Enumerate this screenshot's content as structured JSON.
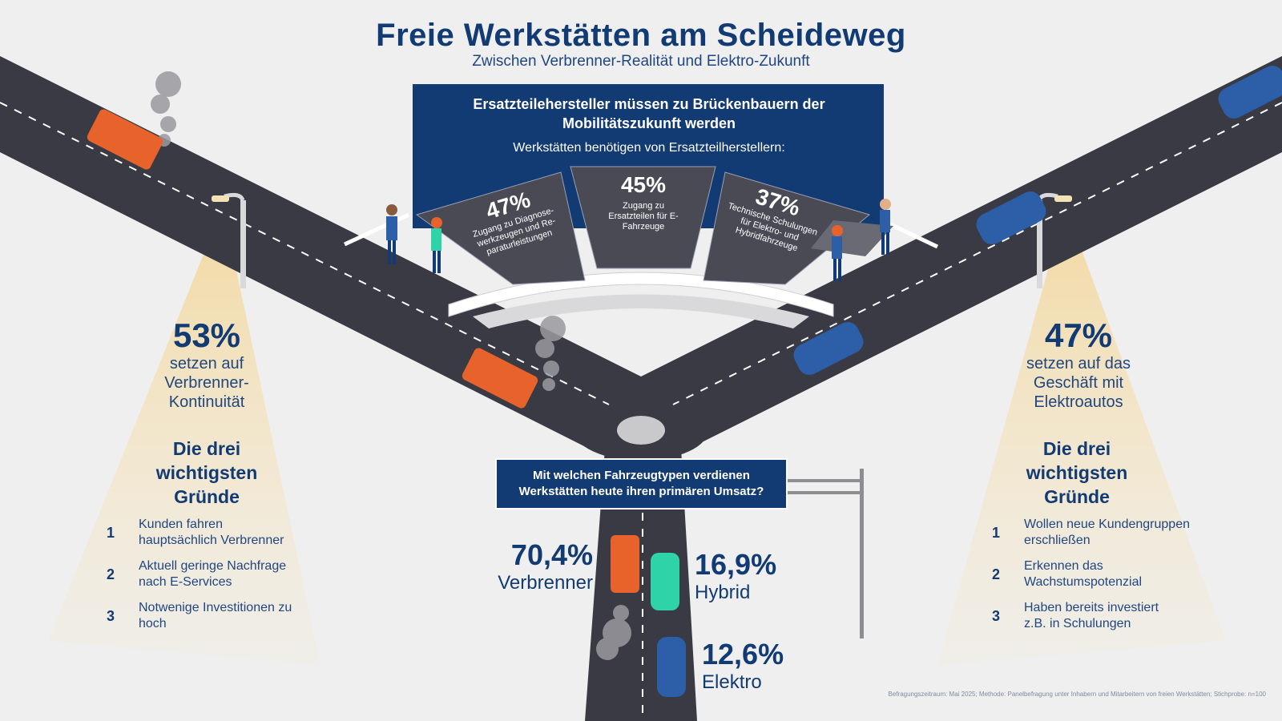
{
  "header": {
    "title": "Freie Werkstätten am Scheideweg",
    "subtitle": "Zwischen Verbrenner-Realität und Elektro-Zukunft"
  },
  "banner": {
    "headline": "Ersatzteilehersteller müssen zu Brückenbauern der Mobilitätszukunft werden",
    "subheadline": "Werkstätten benötigen von Ersatzteilherstellern:",
    "panels": [
      {
        "value": "47%",
        "text": "Zugang zu Diagnose-werkzeugen und Re-paraturleistungen"
      },
      {
        "value": "45%",
        "text": "Zugang zu Ersatzteilen für E-Fahrzeuge"
      },
      {
        "value": "37%",
        "text": "Technische Schulungen für Elektro- und Hybridfahrzeuge"
      }
    ]
  },
  "left": {
    "value": "53%",
    "label": "setzen auf Verbrenner-Kontinuität",
    "heading": "Die drei wichtigsten Gründe",
    "reasons": [
      {
        "num": "1",
        "text": "Kunden fahren hauptsächlich Verbrenner"
      },
      {
        "num": "2",
        "text": "Aktuell geringe Nachfrage nach E-Services"
      },
      {
        "num": "3",
        "text": "Notwenige Investitionen zu hoch"
      }
    ]
  },
  "right": {
    "value": "47%",
    "label": "setzen auf das Geschäft mit Elektroautos",
    "heading": "Die drei wichtigsten Gründe",
    "reasons": [
      {
        "num": "1",
        "text": "Wollen neue Kundengruppen erschließen"
      },
      {
        "num": "2",
        "text": "Erkennen das Wachstumspotenzial"
      },
      {
        "num": "3",
        "text": "Haben bereits investiert z.B. in Schulungen"
      }
    ]
  },
  "sign": {
    "question": "Mit welchen Fahrzeugtypen verdienen Werkstätten heute ihren primären Umsatz?"
  },
  "revenue_shares": [
    {
      "value": "70,4%",
      "label": "Verbrenner",
      "share": 70.4,
      "color": "#e8632b"
    },
    {
      "value": "16,9%",
      "label": "Hybrid",
      "share": 16.9,
      "color": "#2fd3a8"
    },
    {
      "value": "12,6%",
      "label": "Elektro",
      "share": 12.6,
      "color": "#2d5ea8"
    }
  ],
  "footnote": "Befragungszeitraum: Mai 2025; Methode: Panelbefragung unter Inhabern und Mitarbeitern von freien Werkstätten; Stichprobe: n=100",
  "colors": {
    "navy": "#123a73",
    "road": "#3a3a44",
    "panel": "#4a4a55",
    "combustion_car": "#e8632b",
    "electric_car": "#2d5ea8",
    "hybrid_car": "#2fd3a8",
    "background": "#efefef"
  }
}
